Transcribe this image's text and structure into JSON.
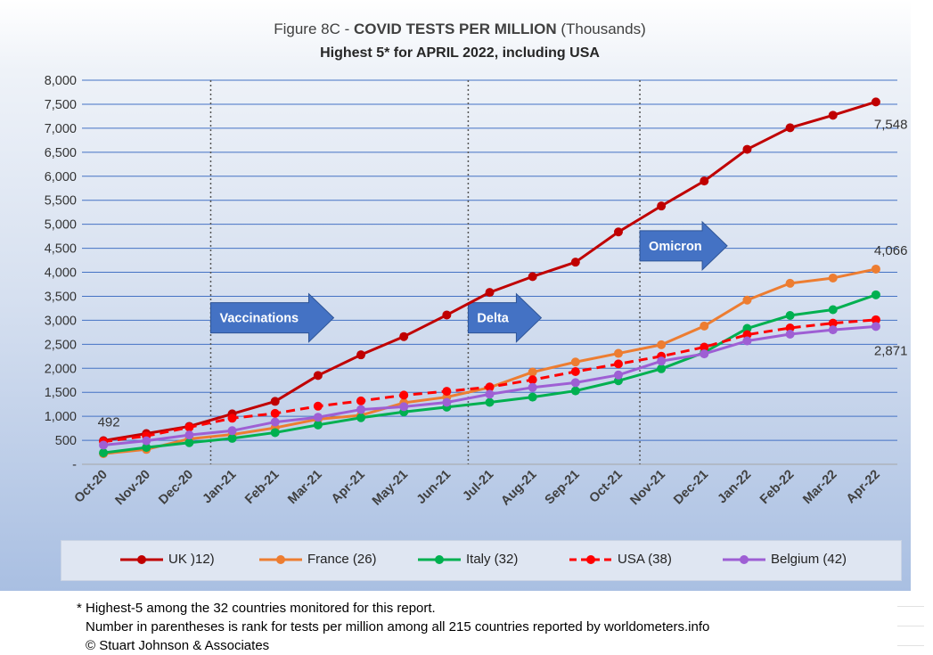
{
  "title": {
    "prefix": "Figure 8C - ",
    "bold": "COVID TESTS PER MILLION",
    "suffix": " (Thousands)",
    "subtitle": "Highest 5* for APRIL 2022, including USA"
  },
  "chart_data": {
    "type": "line",
    "categories": [
      "Oct-20",
      "Nov-20",
      "Dec-20",
      "Jan-21",
      "Feb-21",
      "Mar-21",
      "Apr-21",
      "May-21",
      "Jun-21",
      "Jul-21",
      "Aug-21",
      "Sep-21",
      "Oct-21",
      "Nov-21",
      "Dec-21",
      "Jan-22",
      "Feb-22",
      "Mar-22",
      "Apr-22"
    ],
    "ylim": [
      0,
      8000
    ],
    "yticks": [
      "-",
      "500",
      "1,000",
      "1,500",
      "2,000",
      "2,500",
      "3,000",
      "3,500",
      "4,000",
      "4,500",
      "5,000",
      "5,500",
      "6,000",
      "6,500",
      "7,000",
      "7,500",
      "8,000"
    ],
    "grid": true,
    "legend_position": "bottom",
    "series": [
      {
        "name": "UK )12)",
        "color": "#c00000",
        "dashed": false,
        "values": [
          492,
          640,
          790,
          1050,
          1310,
          1850,
          2280,
          2660,
          3110,
          3580,
          3910,
          4210,
          4840,
          5380,
          5900,
          6560,
          7010,
          7270,
          7548
        ]
      },
      {
        "name": "France (26)",
        "color": "#ed7d31",
        "dashed": false,
        "values": [
          220,
          310,
          530,
          620,
          760,
          940,
          1020,
          1280,
          1400,
          1600,
          1920,
          2130,
          2310,
          2490,
          2880,
          3420,
          3770,
          3880,
          4066
        ]
      },
      {
        "name": "Italy (32)",
        "color": "#00b050",
        "dashed": false,
        "values": [
          240,
          350,
          450,
          540,
          660,
          820,
          970,
          1090,
          1190,
          1290,
          1400,
          1530,
          1740,
          1990,
          2330,
          2830,
          3100,
          3220,
          3530
        ]
      },
      {
        "name": "USA (38)",
        "color": "#ff0000",
        "dashed": true,
        "values": [
          470,
          590,
          770,
          960,
          1060,
          1210,
          1320,
          1440,
          1520,
          1610,
          1760,
          1930,
          2090,
          2250,
          2440,
          2700,
          2840,
          2940,
          3010
        ]
      },
      {
        "name": "Belgium (42)",
        "color": "#9e5fd4",
        "dashed": false,
        "values": [
          400,
          490,
          610,
          700,
          880,
          980,
          1140,
          1200,
          1290,
          1460,
          1600,
          1700,
          1860,
          2150,
          2300,
          2570,
          2710,
          2800,
          2871
        ]
      }
    ],
    "data_labels": [
      {
        "text": "492",
        "series": 0,
        "index": 0
      },
      {
        "text": "7,548",
        "series": 0,
        "index": 18
      },
      {
        "text": "4,066",
        "series": 1,
        "index": 18
      },
      {
        "text": "2,871",
        "series": 4,
        "index": 18
      }
    ],
    "vlines": [
      "Jan-21",
      "Jul-21",
      "Nov-21"
    ],
    "annotations": [
      {
        "text": "Vaccinations",
        "at": "Jan-21",
        "y": 3050
      },
      {
        "text": "Delta",
        "at": "Jul-21",
        "y": 3050
      },
      {
        "text": "Omicron",
        "at": "Nov-21",
        "y": 4550
      }
    ]
  },
  "footnotes": [
    "* Highest-5 among the 32 countries monitored for this report.",
    "Number in parentheses is rank for tests per million among all 215 countries reported by worldometers.info",
    "© Stuart Johnson & Associates"
  ]
}
